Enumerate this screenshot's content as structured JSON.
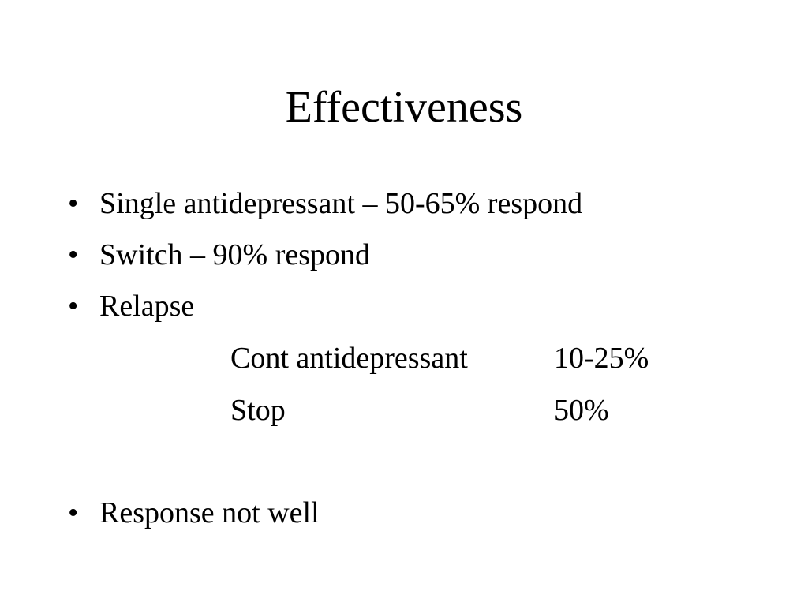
{
  "slide": {
    "title": "Effectiveness",
    "bullet_glyph": "•",
    "bullets": [
      {
        "text": "Single antidepressant – 50-65% respond"
      },
      {
        "text": "Switch – 90% respond"
      },
      {
        "text": "Relapse"
      },
      {
        "text": "Response not well"
      }
    ],
    "relapse_rows": [
      {
        "label": "Cont antidepressant",
        "value": "10-25%"
      },
      {
        "label": "Stop",
        "value": "50%"
      }
    ]
  }
}
